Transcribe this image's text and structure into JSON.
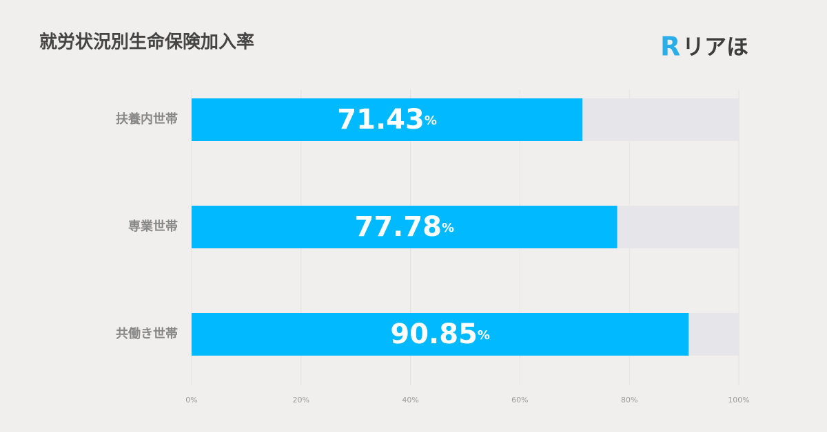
{
  "chart_data": {
    "type": "bar",
    "orientation": "horizontal",
    "title": "就労状況別生命保険加入率",
    "logo_mark": "R",
    "logo_text": "リアほ",
    "categories": [
      "扶養内世帯",
      "専業世帯",
      "共働き世帯"
    ],
    "values": [
      71.43,
      77.78,
      90.85
    ],
    "value_labels": [
      "71.43%",
      "77.78%",
      "90.85%"
    ],
    "color": "#00b9ff",
    "track_color": "#e6e5ea",
    "xlim": [
      0,
      100
    ],
    "xticks": [
      {
        "value": 0,
        "label": "0%"
      },
      {
        "value": 20,
        "label": "20%"
      },
      {
        "value": 40,
        "label": "40%"
      },
      {
        "value": 60,
        "label": "60%"
      },
      {
        "value": 80,
        "label": "80%"
      },
      {
        "value": 100,
        "label": "100%"
      }
    ],
    "grid": true
  }
}
